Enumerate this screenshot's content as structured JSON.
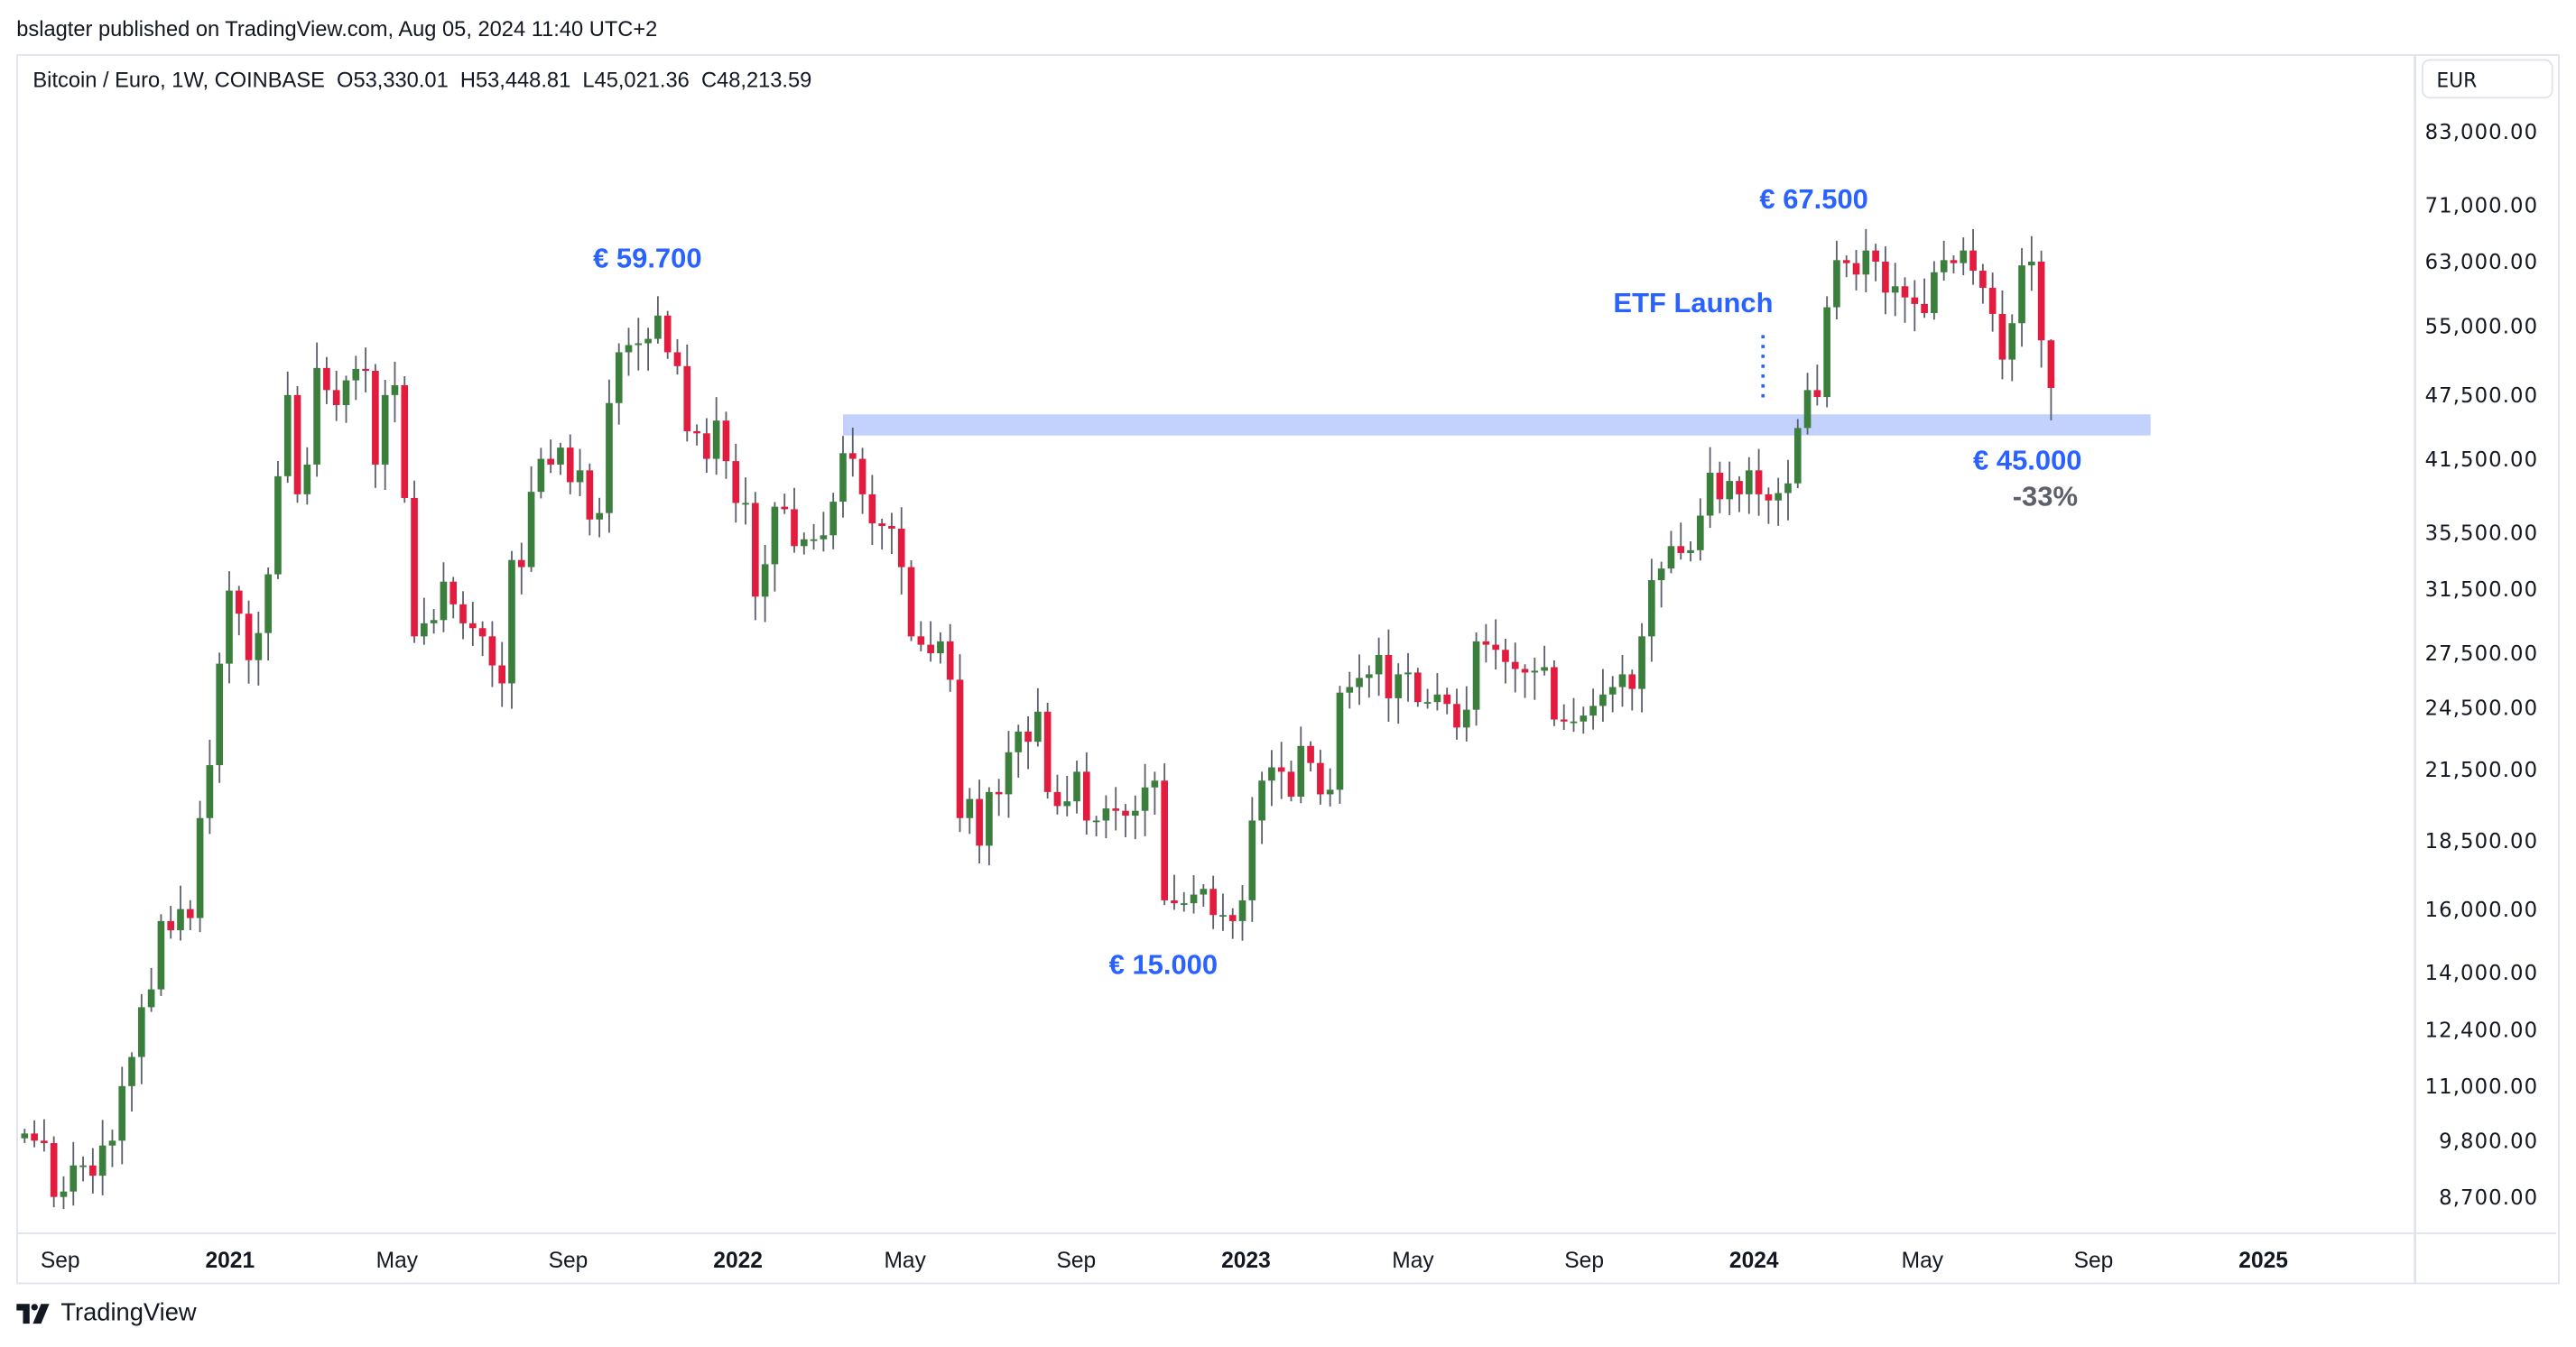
{
  "published": "bslagter published on TradingView.com, Aug 05, 2024 11:40 UTC+2",
  "legend": "Bitcoin / Euro, 1W, COINBASE  O53,330.01  H53,448.81  L45,021.36  C48,213.59",
  "currency_button": "EUR",
  "footer_brand": "TradingView",
  "colors": {
    "up": "#3b7f3d",
    "down": "#e31b3e",
    "wick": "#5d606b",
    "annotation": "#2962ff",
    "band": "#c3d2fd",
    "percent": "#5d606b"
  },
  "annotations": {
    "peak_2021": "€ 59.700",
    "peak_2024": "€ 67.500",
    "etf": "ETF Launch",
    "bottom": "€ 15.000",
    "support": "€ 45.000",
    "drawdown": "-33%"
  },
  "chart_data": {
    "type": "candlestick",
    "title": "Bitcoin / Euro, 1W, COINBASE",
    "scale": "log",
    "ylim": [
      8200,
      93000
    ],
    "first_week": "2020-08-10",
    "interval": "1W",
    "closes": [
      9950,
      9800,
      9750,
      8700,
      8800,
      9300,
      9300,
      9100,
      9700,
      9800,
      11000,
      11700,
      13000,
      13500,
      15600,
      15300,
      16000,
      15700,
      19400,
      21700,
      26900,
      31400,
      29900,
      27100,
      28700,
      32500,
      40000,
      47500,
      38500,
      41000,
      50300,
      48000,
      46500,
      49000,
      50200,
      50000,
      41000,
      47500,
      48500,
      38200,
      28500,
      29300,
      29500,
      32000,
      30500,
      29300,
      29000,
      28500,
      26800,
      25800,
      33500,
      33000,
      38700,
      41500,
      41000,
      42500,
      39500,
      40500,
      36500,
      37000,
      46700,
      52000,
      52800,
      53000,
      53500,
      56200,
      52000,
      50500,
      44000,
      43800,
      41500,
      45000,
      41300,
      37800,
      37800,
      31000,
      33200,
      37500,
      37300,
      34500,
      35000,
      35000,
      35300,
      37900,
      42000,
      41500,
      38500,
      36200,
      36000,
      35800,
      33000,
      28500,
      28000,
      27500,
      28200,
      26000,
      19400,
      20200,
      18300,
      20500,
      20400,
      22300,
      23300,
      22800,
      24300,
      20500,
      19900,
      20100,
      21400,
      19300,
      19300,
      19800,
      19700,
      19500,
      19700,
      20700,
      21000,
      16300,
      16200,
      16200,
      16500,
      16700,
      15800,
      15800,
      15600,
      16300,
      19300,
      21000,
      21600,
      21400,
      20300,
      22600,
      21800,
      20400,
      20600,
      25300,
      25600,
      26100,
      26300,
      27400,
      25000,
      26300,
      26400,
      24800,
      24800,
      25200,
      24700,
      23500,
      24400,
      28200,
      28000,
      27700,
      27000,
      26600,
      26400,
      26500,
      26700,
      23900,
      23800,
      23800,
      24100,
      24600,
      25200,
      25600,
      26300,
      25500,
      28500,
      32100,
      32900,
      34500,
      34000,
      34200,
      36800,
      40300,
      38100,
      39600,
      38500,
      40500,
      38500,
      38000,
      38600,
      39400,
      44300,
      48000,
      47300,
      57200,
      63200,
      62800,
      61300,
      64500,
      63000,
      59000,
      59800,
      58400,
      57600,
      56500,
      61600,
      63200,
      62800,
      64500,
      61800,
      59600,
      56400,
      51200,
      55300,
      62500,
      63000,
      53330.01,
      48213.59
    ],
    "first_open": 9850,
    "last_candle": {
      "open": 53330.01,
      "high": 53448.81,
      "low": 45021.36,
      "close": 48213.59
    },
    "support_band": [
      43600,
      45600
    ],
    "support_band_start": "2022-03-21",
    "etf_launch_date": "2024-01-11",
    "y_ticks": [
      "83,000.00",
      "71,000.00",
      "63,000.00",
      "55,000.00",
      "47,500.00",
      "41,500.00",
      "35,500.00",
      "31,500.00",
      "27,500.00",
      "24,500.00",
      "21,500.00",
      "18,500.00",
      "16,000.00",
      "14,000.00",
      "12,400.00",
      "11,000.00",
      "9,800.00",
      "8,700.00"
    ],
    "x_ticks": [
      {
        "label": "Sep",
        "date": "2020-09-01",
        "bold": false
      },
      {
        "label": "2021",
        "date": "2021-01-01",
        "bold": true
      },
      {
        "label": "May",
        "date": "2021-05-01",
        "bold": false
      },
      {
        "label": "Sep",
        "date": "2021-09-01",
        "bold": false
      },
      {
        "label": "2022",
        "date": "2022-01-01",
        "bold": true
      },
      {
        "label": "May",
        "date": "2022-05-01",
        "bold": false
      },
      {
        "label": "Sep",
        "date": "2022-09-01",
        "bold": false
      },
      {
        "label": "2023",
        "date": "2023-01-01",
        "bold": true
      },
      {
        "label": "May",
        "date": "2023-05-01",
        "bold": false
      },
      {
        "label": "Sep",
        "date": "2023-09-01",
        "bold": false
      },
      {
        "label": "2024",
        "date": "2024-01-01",
        "bold": true
      },
      {
        "label": "May",
        "date": "2024-05-01",
        "bold": false
      },
      {
        "label": "Sep",
        "date": "2024-09-01",
        "bold": false
      },
      {
        "label": "2025",
        "date": "2025-01-01",
        "bold": true
      }
    ]
  }
}
